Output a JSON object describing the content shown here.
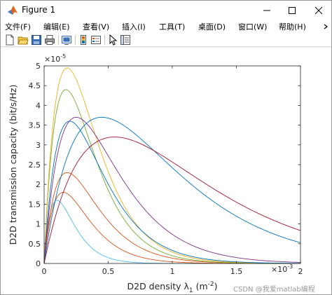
{
  "window": {
    "title": "Figure 1",
    "accent_color": "#0072bd"
  },
  "menu": [
    {
      "label": "文件(F)"
    },
    {
      "label": "编辑(E)"
    },
    {
      "label": "查看(V)"
    },
    {
      "label": "插入(I)"
    },
    {
      "label": "工具(T)"
    },
    {
      "label": "桌面(D)"
    },
    {
      "label": "窗口(W)"
    },
    {
      "label": "帮助(H)"
    }
  ],
  "toolbar": [
    {
      "icon": "new-figure-icon"
    },
    {
      "icon": "open-file-icon"
    },
    {
      "icon": "save-icon"
    },
    {
      "icon": "print-icon"
    },
    {
      "icon": "link-plot-icon"
    },
    {
      "icon": "insert-colorbar-icon"
    },
    {
      "icon": "insert-legend-icon"
    },
    {
      "icon": "edit-plot-arrow-icon"
    },
    {
      "icon": "property-inspector-icon"
    }
  ],
  "watermark": "CSDN @我爱matlab编程",
  "chart_data": {
    "type": "line",
    "title": "",
    "xlabel": "D2D density λ",
    "xlabel_sub": "1",
    "xlabel_unit_open": " (m",
    "xlabel_unit_sup": "-2",
    "xlabel_unit_close": ")",
    "ylabel": "D2D transmission capacity (bit/s/Hz)",
    "x_exponent": "×10",
    "x_exponent_power": "-3",
    "y_exponent": "×10",
    "y_exponent_power": "-5",
    "xlim": [
      0,
      2
    ],
    "ylim": [
      0,
      5
    ],
    "x_ticks": [
      0,
      0.5,
      1,
      1.5,
      2
    ],
    "x_tick_labels": [
      "0",
      "0.5",
      "1",
      "1.5",
      "2"
    ],
    "y_ticks": [
      0,
      0.5,
      1,
      1.5,
      2,
      2.5,
      3,
      3.5,
      4,
      4.5,
      5
    ],
    "y_tick_labels": [
      "0",
      "0.5",
      "1",
      "1.5",
      "2",
      "2.5",
      "3",
      "3.5",
      "4",
      "4.5",
      "5"
    ],
    "grid": false,
    "series": [
      {
        "color": "#4dbeee",
        "peak_x": 0.1,
        "peak_y": 1.6
      },
      {
        "color": "#d95319",
        "peak_x": 0.15,
        "peak_y": 1.8
      },
      {
        "color": "#d95319",
        "peak_x": 0.18,
        "peak_y": 2.3
      },
      {
        "color": "#77ac30",
        "peak_x": 0.17,
        "peak_y": 4.4
      },
      {
        "color": "#edb120",
        "peak_x": 0.18,
        "peak_y": 4.95
      },
      {
        "color": "#0072bd",
        "peak_x": 0.2,
        "peak_y": 3.6
      },
      {
        "color": "#7e2f8e",
        "peak_x": 0.25,
        "peak_y": 3.7
      },
      {
        "color": "#0072bd",
        "peak_x": 0.45,
        "peak_y": 3.7
      },
      {
        "color": "#a2142f",
        "peak_x": 0.55,
        "peak_y": 3.2
      }
    ]
  }
}
